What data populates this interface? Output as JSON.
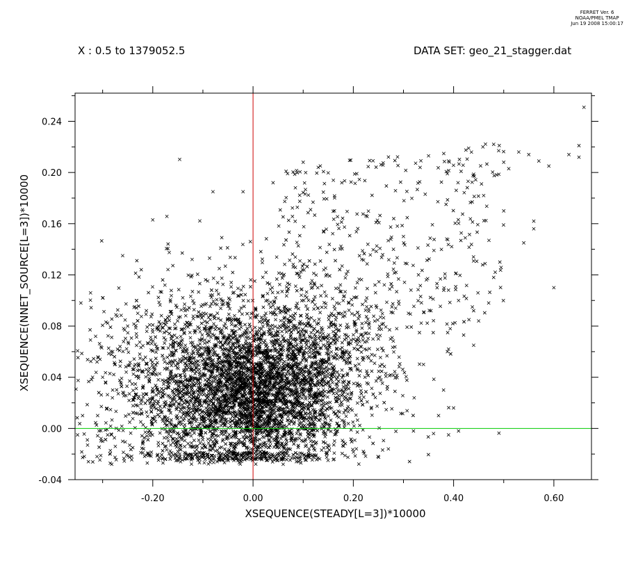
{
  "header": {
    "software": "FERRET Ver. 6",
    "org": "NOAA/PMEL TMAP",
    "timestamp": "Jun 19 2008 15:00:17",
    "x_range": "X : 0.5 to 1379052.5",
    "dataset": "DATA SET: geo_21_stagger.dat"
  },
  "colors": {
    "points": "#000000",
    "zero_x_line": "#cc0000",
    "zero_y_line": "#00cc00",
    "frame": "#000000"
  },
  "chart_data": {
    "type": "scatter",
    "xlabel": "XSEQUENCE(STEADY[L=3])*10000",
    "ylabel": "XSEQUENCE(NNET_SOURCE[L=3])*10000",
    "xlim": [
      -0.355,
      0.675
    ],
    "ylim": [
      -0.04,
      0.262
    ],
    "x_ticks": [
      -0.2,
      0.0,
      0.2,
      0.4,
      0.6
    ],
    "x_tick_labels": [
      "-0.20",
      "0.00",
      "0.20",
      "0.40",
      "0.60"
    ],
    "y_ticks": [
      -0.04,
      0.0,
      0.04,
      0.08,
      0.12,
      0.16,
      0.2,
      0.24
    ],
    "y_tick_labels": [
      "-0.04",
      "0.00",
      "0.04",
      "0.08",
      "0.12",
      "0.16",
      "0.20",
      "0.24"
    ],
    "reference_lines": {
      "x": 0.0,
      "y": 0.0
    },
    "marker": "x",
    "grid": false,
    "points": [
      [
        0.66,
        0.251
      ],
      [
        0.68,
        0.19
      ],
      [
        0.65,
        0.221
      ],
      [
        0.63,
        0.214
      ],
      [
        0.65,
        0.212
      ],
      [
        0.59,
        0.205
      ],
      [
        0.57,
        0.209
      ],
      [
        0.55,
        0.214
      ],
      [
        0.53,
        0.216
      ],
      [
        0.51,
        0.203
      ],
      [
        0.5,
        0.208
      ],
      [
        0.48,
        0.222
      ],
      [
        0.49,
        0.217
      ],
      [
        0.43,
        0.219
      ],
      [
        0.39,
        0.209
      ],
      [
        0.35,
        0.213
      ],
      [
        0.56,
        0.162
      ],
      [
        0.56,
        0.156
      ],
      [
        0.54,
        0.145
      ],
      [
        0.6,
        0.11
      ],
      [
        0.48,
        0.118
      ],
      [
        0.47,
        0.098
      ],
      [
        0.44,
        0.092
      ],
      [
        0.5,
        0.17
      ],
      [
        0.46,
        0.182
      ],
      [
        0.41,
        0.1
      ],
      [
        0.45,
        0.084
      ],
      [
        0.42,
        0.073
      ],
      [
        0.39,
        0.062
      ],
      [
        0.44,
        0.065
      ],
      [
        0.4,
        0.016
      ],
      [
        0.37,
        0.01
      ],
      [
        0.36,
        -0.004
      ],
      [
        0.39,
        -0.005
      ],
      [
        0.38,
        0.03
      ],
      [
        0.41,
        -0.002
      ],
      [
        0.34,
        0.05
      ],
      [
        0.32,
        -0.002
      ],
      [
        -0.35,
        -0.005
      ],
      [
        -0.34,
        0.01
      ],
      [
        -0.33,
        -0.013
      ],
      [
        -0.3,
        0.102
      ],
      [
        -0.26,
        0.135
      ],
      [
        -0.2,
        0.163
      ],
      [
        -0.08,
        0.185
      ],
      [
        -0.02,
        0.185
      ],
      [
        0.1,
        0.208
      ],
      [
        0.13,
        0.204
      ],
      [
        0.04,
        0.192
      ],
      [
        -0.3,
        0.04
      ],
      [
        -0.32,
        0.04
      ],
      [
        -0.31,
        0.01
      ],
      [
        -0.28,
        0.06
      ],
      [
        -0.29,
        -0.005
      ],
      [
        -0.26,
        -0.01
      ],
      [
        -0.3,
        -0.01
      ],
      [
        -0.28,
        0.03
      ],
      [
        -0.25,
        0.08
      ],
      [
        -0.23,
        0.09
      ],
      [
        -0.22,
        -0.012
      ],
      [
        -0.24,
        -0.015
      ],
      [
        0.27,
        -0.016
      ],
      [
        0.22,
        -0.018
      ],
      [
        0.25,
        0.07
      ],
      [
        0.28,
        0.14
      ],
      [
        0.3,
        0.15
      ],
      [
        0.33,
        0.12
      ],
      [
        0.31,
        0.09
      ],
      [
        -0.03,
        -0.025
      ],
      [
        0.06,
        -0.028
      ],
      [
        0.09,
        -0.026
      ],
      [
        -0.05,
        -0.025
      ],
      [
        0.02,
        -0.022
      ],
      [
        -0.1,
        -0.02
      ],
      [
        -0.15,
        -0.018
      ]
    ]
  }
}
